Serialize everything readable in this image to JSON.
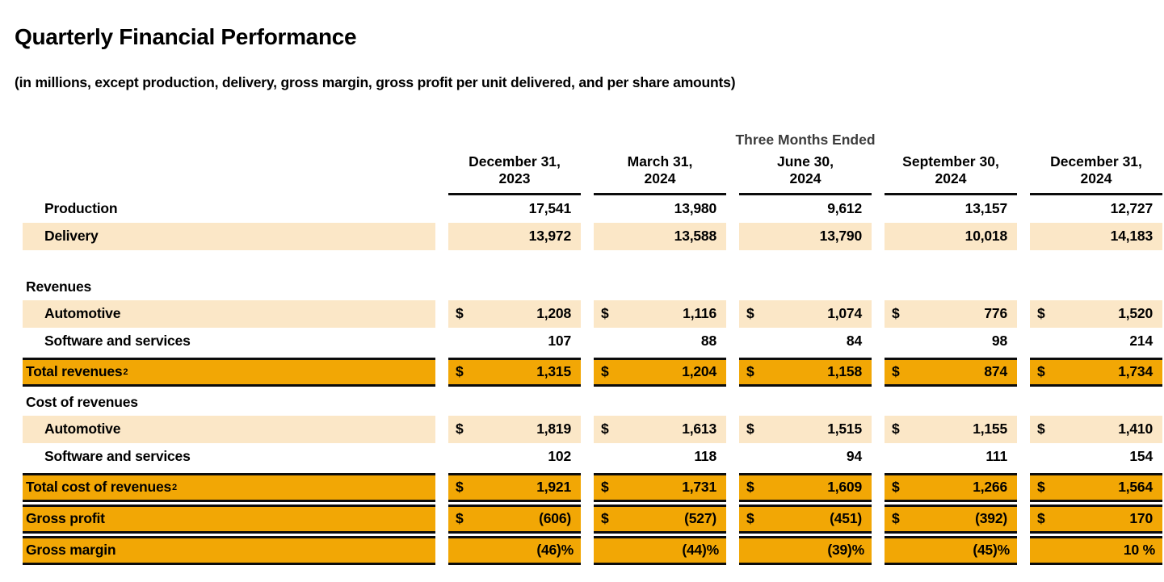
{
  "page": {
    "title": "Quarterly Financial Performance",
    "subtitle": "(in millions, except production, delivery, gross margin, gross profit per unit delivered, and per share amounts)"
  },
  "colors": {
    "accent_orange": "#F2A705",
    "highlight_cream": "#FBE7C7",
    "group_header_gray": "#3C3C3C",
    "border_black": "#0C0C0C"
  },
  "table": {
    "currency": "$",
    "group_header": "Three Months Ended",
    "columns": [
      {
        "line1": "December 31,",
        "line2": "2023"
      },
      {
        "line1": "March 31,",
        "line2": "2024"
      },
      {
        "line1": "June 30,",
        "line2": "2024"
      },
      {
        "line1": "September 30,",
        "line2": "2024"
      },
      {
        "line1": "December 31,",
        "line2": "2024"
      }
    ],
    "rows": [
      {
        "label": "Production",
        "style": "plain",
        "values": [
          "17,541",
          "13,980",
          "9,612",
          "13,157",
          "12,727"
        ]
      },
      {
        "label": "Delivery",
        "style": "cream",
        "values": [
          "13,972",
          "13,588",
          "13,790",
          "10,018",
          "14,183"
        ]
      },
      {
        "label": "Revenues",
        "style": "section",
        "values": []
      },
      {
        "label": "Automotive",
        "style": "cream",
        "dollar": true,
        "values": [
          "1,208",
          "1,116",
          "1,074",
          "776",
          "1,520"
        ]
      },
      {
        "label": "Software and services",
        "style": "plain",
        "values": [
          "107",
          "88",
          "84",
          "98",
          "214"
        ]
      },
      {
        "label": "Total revenues",
        "footnote": "2",
        "style": "total",
        "dollar": true,
        "values": [
          "1,315",
          "1,204",
          "1,158",
          "874",
          "1,734"
        ]
      },
      {
        "label": "Cost of revenues",
        "style": "section",
        "values": []
      },
      {
        "label": "Automotive",
        "style": "cream",
        "dollar": true,
        "values": [
          "1,819",
          "1,613",
          "1,515",
          "1,155",
          "1,410"
        ]
      },
      {
        "label": "Software and services",
        "style": "plain",
        "values": [
          "102",
          "118",
          "94",
          "111",
          "154"
        ]
      },
      {
        "label": "Total cost of revenues",
        "footnote": "2",
        "style": "total",
        "dollar": true,
        "values": [
          "1,921",
          "1,731",
          "1,609",
          "1,266",
          "1,564"
        ]
      },
      {
        "label": "Gross profit",
        "style": "total",
        "dollar": true,
        "values": [
          "(606)",
          "(527)",
          "(451)",
          "(392)",
          "170"
        ]
      },
      {
        "label": "Gross margin",
        "style": "total",
        "values": [
          "(46)%",
          "(44)%",
          "(39)%",
          "(45)%",
          "10 %"
        ]
      }
    ]
  },
  "chart_data": {
    "type": "table",
    "title": "Quarterly Financial Performance",
    "categories": [
      "December 31, 2023",
      "March 31, 2024",
      "June 30, 2024",
      "September 30, 2024",
      "December 31, 2024"
    ],
    "series": [
      {
        "name": "Production",
        "values": [
          17541,
          13980,
          9612,
          13157,
          12727
        ]
      },
      {
        "name": "Delivery",
        "values": [
          13972,
          13588,
          13790,
          10018,
          14183
        ]
      },
      {
        "name": "Revenues - Automotive ($M)",
        "values": [
          1208,
          1116,
          1074,
          776,
          1520
        ]
      },
      {
        "name": "Revenues - Software and services ($M)",
        "values": [
          107,
          88,
          84,
          98,
          214
        ]
      },
      {
        "name": "Total revenues ($M)",
        "values": [
          1315,
          1204,
          1158,
          874,
          1734
        ]
      },
      {
        "name": "Cost of revenues - Automotive ($M)",
        "values": [
          1819,
          1613,
          1515,
          1155,
          1410
        ]
      },
      {
        "name": "Cost of revenues - Software and services ($M)",
        "values": [
          102,
          118,
          94,
          111,
          154
        ]
      },
      {
        "name": "Total cost of revenues ($M)",
        "values": [
          1921,
          1731,
          1609,
          1266,
          1564
        ]
      },
      {
        "name": "Gross profit ($M)",
        "values": [
          -606,
          -527,
          -451,
          -392,
          170
        ]
      },
      {
        "name": "Gross margin (%)",
        "values": [
          -46,
          -44,
          -39,
          -45,
          10
        ]
      }
    ]
  }
}
